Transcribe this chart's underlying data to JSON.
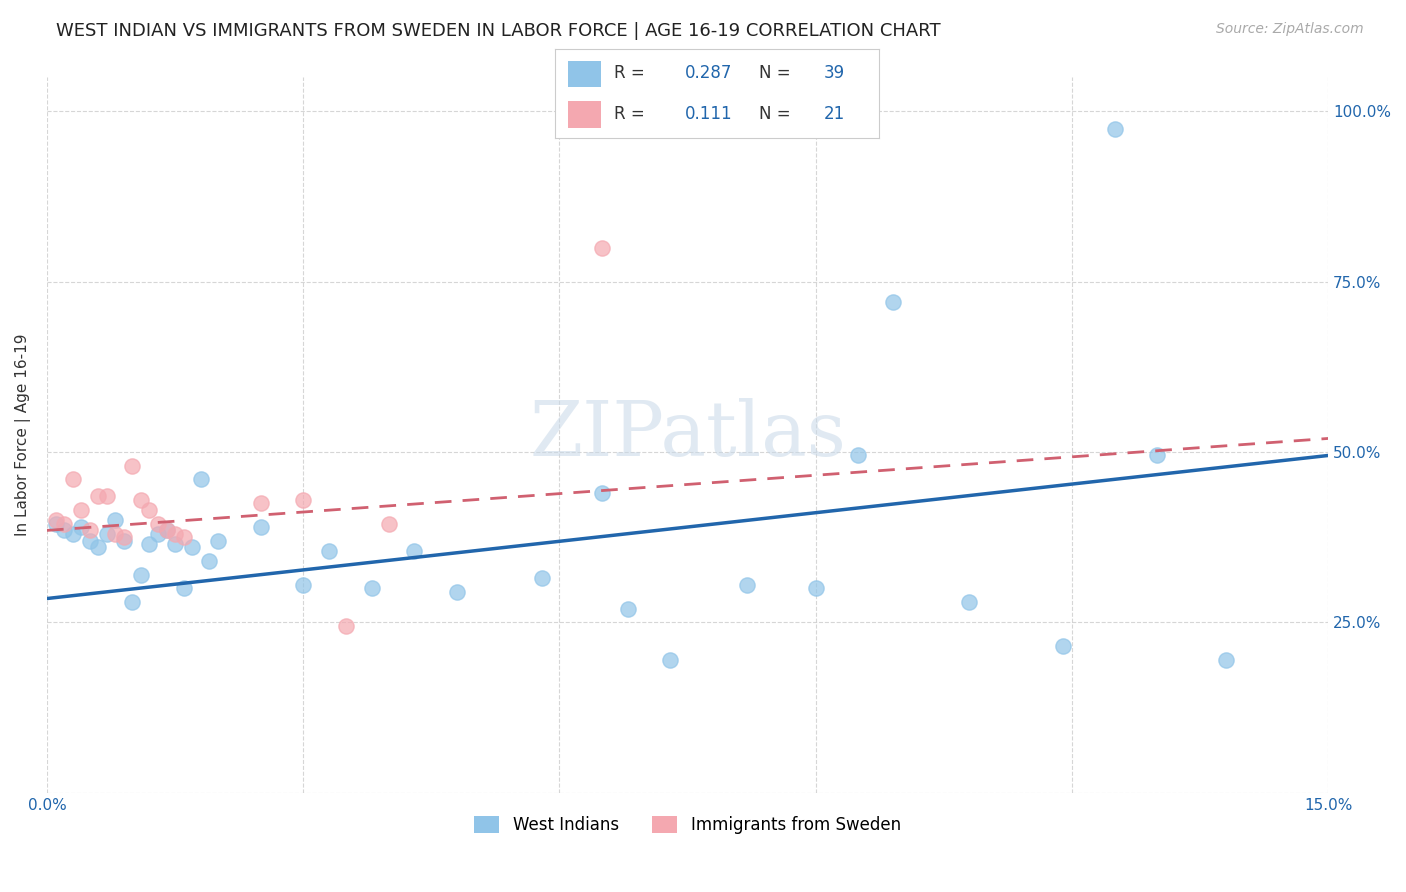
{
  "title": "WEST INDIAN VS IMMIGRANTS FROM SWEDEN IN LABOR FORCE | AGE 16-19 CORRELATION CHART",
  "source": "Source: ZipAtlas.com",
  "ylabel": "In Labor Force | Age 16-19",
  "xlim": [
    0.0,
    0.15
  ],
  "ylim": [
    0.0,
    1.05
  ],
  "xticks": [
    0.0,
    0.03,
    0.06,
    0.09,
    0.12,
    0.15
  ],
  "xticklabels": [
    "0.0%",
    "",
    "",
    "",
    "",
    "15.0%"
  ],
  "yticks": [
    0.0,
    0.25,
    0.5,
    0.75,
    1.0
  ],
  "yticklabels_right": [
    "",
    "25.0%",
    "50.0%",
    "75.0%",
    "100.0%"
  ],
  "watermark": "ZIPatlas",
  "blue_color": "#90c4e8",
  "pink_color": "#f4a8b0",
  "blue_line_color": "#2166ac",
  "pink_line_color": "#d06070",
  "legend_R1": "0.287",
  "legend_N1": "39",
  "legend_R2": "0.111",
  "legend_N2": "21",
  "west_indian_x": [
    0.001,
    0.002,
    0.003,
    0.004,
    0.005,
    0.006,
    0.007,
    0.008,
    0.009,
    0.01,
    0.011,
    0.012,
    0.013,
    0.014,
    0.015,
    0.016,
    0.017,
    0.018,
    0.019,
    0.02,
    0.025,
    0.03,
    0.033,
    0.038,
    0.043,
    0.048,
    0.058,
    0.065,
    0.068,
    0.073,
    0.082,
    0.09,
    0.095,
    0.099,
    0.108,
    0.119,
    0.125,
    0.13,
    0.138
  ],
  "west_indian_y": [
    0.395,
    0.385,
    0.38,
    0.39,
    0.37,
    0.36,
    0.38,
    0.4,
    0.37,
    0.28,
    0.32,
    0.365,
    0.38,
    0.385,
    0.365,
    0.3,
    0.36,
    0.46,
    0.34,
    0.37,
    0.39,
    0.305,
    0.355,
    0.3,
    0.355,
    0.295,
    0.315,
    0.44,
    0.27,
    0.195,
    0.305,
    0.3,
    0.495,
    0.72,
    0.28,
    0.215,
    0.975,
    0.495,
    0.195
  ],
  "sweden_x": [
    0.001,
    0.002,
    0.003,
    0.004,
    0.005,
    0.006,
    0.007,
    0.008,
    0.009,
    0.01,
    0.011,
    0.012,
    0.013,
    0.014,
    0.015,
    0.016,
    0.025,
    0.03,
    0.035,
    0.04,
    0.065
  ],
  "sweden_y": [
    0.4,
    0.395,
    0.46,
    0.415,
    0.385,
    0.435,
    0.435,
    0.38,
    0.375,
    0.48,
    0.43,
    0.415,
    0.395,
    0.385,
    0.38,
    0.375,
    0.425,
    0.43,
    0.245,
    0.395,
    0.8
  ],
  "blue_trend_x": [
    0.0,
    0.15
  ],
  "blue_trend_y": [
    0.285,
    0.495
  ],
  "pink_trend_x": [
    0.0,
    0.15
  ],
  "pink_trend_y": [
    0.385,
    0.52
  ],
  "title_fontsize": 13,
  "axis_label_fontsize": 11,
  "tick_fontsize": 11,
  "legend_fontsize": 13,
  "source_fontsize": 10,
  "marker_size": 11,
  "background_color": "#ffffff",
  "grid_color": "#cccccc"
}
